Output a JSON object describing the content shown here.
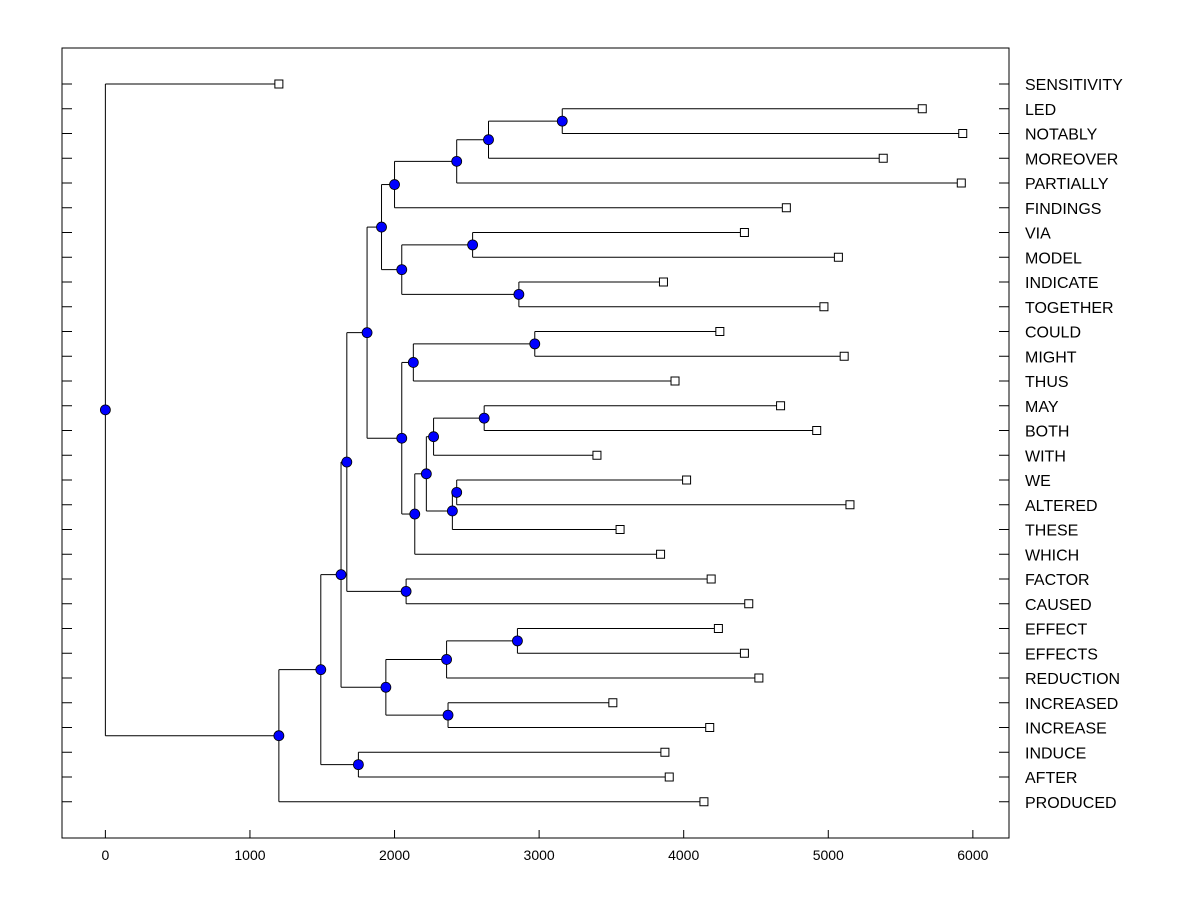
{
  "chart_data": {
    "type": "dendrogram",
    "orientation": "horizontal",
    "title": "",
    "xlabel": "",
    "ylabel": "",
    "xlim": [
      -300,
      6250
    ],
    "x_ticks": [
      0,
      1000,
      2000,
      3000,
      4000,
      5000,
      6000
    ],
    "leaves": [
      {
        "label": "SENSITIVITY",
        "value": 1200
      },
      {
        "label": "LED",
        "value": 5650
      },
      {
        "label": "NOTABLY",
        "value": 5930
      },
      {
        "label": "MOREOVER",
        "value": 5380
      },
      {
        "label": "PARTIALLY",
        "value": 5920
      },
      {
        "label": "FINDINGS",
        "value": 4710
      },
      {
        "label": "VIA",
        "value": 4420
      },
      {
        "label": "MODEL",
        "value": 5070
      },
      {
        "label": "INDICATE",
        "value": 3860
      },
      {
        "label": "TOGETHER",
        "value": 4970
      },
      {
        "label": "COULD",
        "value": 4250
      },
      {
        "label": "MIGHT",
        "value": 5110
      },
      {
        "label": "THUS",
        "value": 3940
      },
      {
        "label": "MAY",
        "value": 4670
      },
      {
        "label": "BOTH",
        "value": 4920
      },
      {
        "label": "WITH",
        "value": 3400
      },
      {
        "label": "WE",
        "value": 4020
      },
      {
        "label": "ALTERED",
        "value": 5150
      },
      {
        "label": "THESE",
        "value": 3560
      },
      {
        "label": "WHICH",
        "value": 3840
      },
      {
        "label": "FACTOR",
        "value": 4190
      },
      {
        "label": "CAUSED",
        "value": 4450
      },
      {
        "label": "EFFECT",
        "value": 4240
      },
      {
        "label": "EFFECTS",
        "value": 4420
      },
      {
        "label": "REDUCTION",
        "value": 4520
      },
      {
        "label": "INCREASED",
        "value": 3510
      },
      {
        "label": "INCREASE",
        "value": 4180
      },
      {
        "label": "INDUCE",
        "value": 3870
      },
      {
        "label": "AFTER",
        "value": 3900
      },
      {
        "label": "PRODUCED",
        "value": 4140
      }
    ],
    "merges": [
      {
        "id": "n1",
        "x": 3160,
        "children": [
          "LED",
          "NOTABLY"
        ]
      },
      {
        "id": "n2",
        "x": 2650,
        "children": [
          "n1",
          "MOREOVER"
        ]
      },
      {
        "id": "n3",
        "x": 2430,
        "children": [
          "n2",
          "PARTIALLY"
        ]
      },
      {
        "id": "n4",
        "x": 2000,
        "children": [
          "n3",
          "FINDINGS"
        ]
      },
      {
        "id": "n5",
        "x": 2540,
        "children": [
          "VIA",
          "MODEL"
        ]
      },
      {
        "id": "n6",
        "x": 2860,
        "children": [
          "INDICATE",
          "TOGETHER"
        ]
      },
      {
        "id": "n7",
        "x": 2050,
        "children": [
          "n5",
          "n6"
        ]
      },
      {
        "id": "n8",
        "x": 1910,
        "children": [
          "n4",
          "n7"
        ]
      },
      {
        "id": "n9",
        "x": 2970,
        "children": [
          "COULD",
          "MIGHT"
        ]
      },
      {
        "id": "n10",
        "x": 2130,
        "children": [
          "n9",
          "THUS"
        ]
      },
      {
        "id": "n11",
        "x": 2620,
        "children": [
          "MAY",
          "BOTH"
        ]
      },
      {
        "id": "n12",
        "x": 2270,
        "children": [
          "n11",
          "WITH"
        ]
      },
      {
        "id": "n13",
        "x": 2430,
        "children": [
          "WE",
          "ALTERED"
        ]
      },
      {
        "id": "n14",
        "x": 2400,
        "children": [
          "n13",
          "THESE"
        ]
      },
      {
        "id": "n15",
        "x": 2220,
        "children": [
          "n12",
          "n14"
        ]
      },
      {
        "id": "n16",
        "x": 2140,
        "children": [
          "n15",
          "WHICH"
        ]
      },
      {
        "id": "n17",
        "x": 2050,
        "children": [
          "n10",
          "n16"
        ]
      },
      {
        "id": "n18",
        "x": 1810,
        "children": [
          "n8",
          "n17"
        ]
      },
      {
        "id": "n19",
        "x": 2080,
        "children": [
          "FACTOR",
          "CAUSED"
        ]
      },
      {
        "id": "n20",
        "x": 1670,
        "children": [
          "n18",
          "n19"
        ]
      },
      {
        "id": "n21",
        "x": 2850,
        "children": [
          "EFFECT",
          "EFFECTS"
        ]
      },
      {
        "id": "n22",
        "x": 2360,
        "children": [
          "n21",
          "REDUCTION"
        ]
      },
      {
        "id": "n23",
        "x": 2370,
        "children": [
          "INCREASED",
          "INCREASE"
        ]
      },
      {
        "id": "n24",
        "x": 1940,
        "children": [
          "n22",
          "n23"
        ]
      },
      {
        "id": "n25",
        "x": 1630,
        "children": [
          "n20",
          "n24"
        ]
      },
      {
        "id": "n26",
        "x": 1750,
        "children": [
          "INDUCE",
          "AFTER"
        ]
      },
      {
        "id": "n27",
        "x": 1490,
        "children": [
          "n25",
          "n26"
        ]
      },
      {
        "id": "n28",
        "x": 1200,
        "children": [
          "n27",
          "PRODUCED"
        ]
      },
      {
        "id": "n29",
        "x": 0,
        "children": [
          "SENSITIVITY",
          "n28"
        ]
      }
    ],
    "node_marker_color": "#0000ff",
    "leaf_marker": "open-square",
    "line_color": "#000000"
  }
}
